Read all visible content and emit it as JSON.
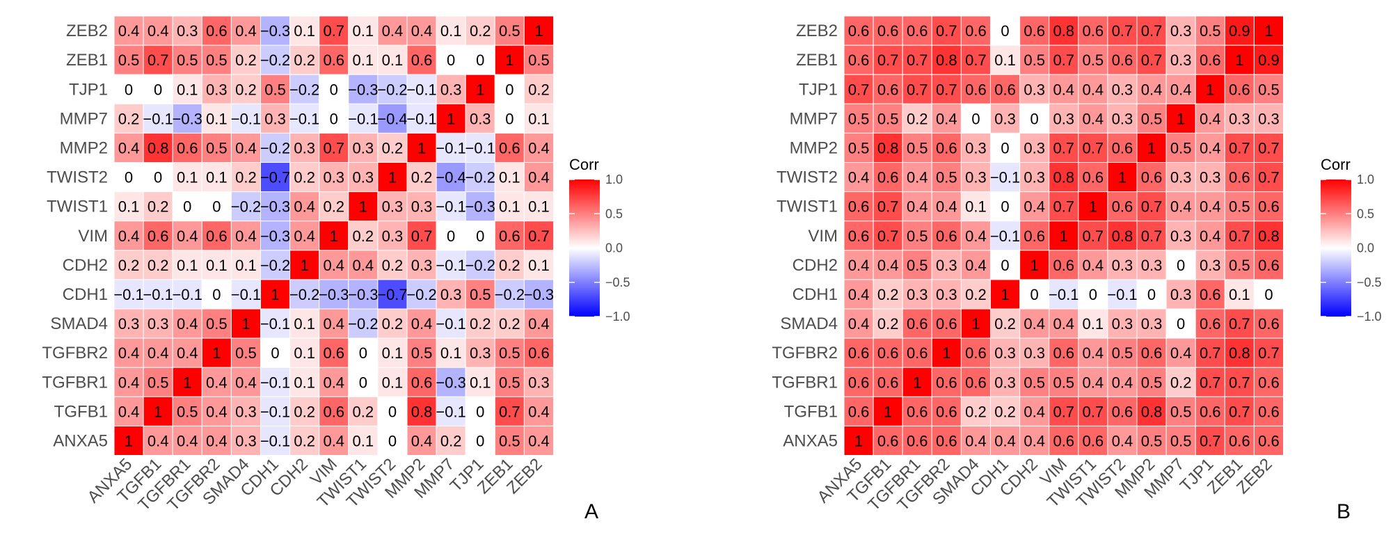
{
  "chart_data": [
    {
      "type": "heatmap",
      "panel_label": "A",
      "x_categories": [
        "ANXA5",
        "TGFB1",
        "TGFBR1",
        "TGFBR2",
        "SMAD4",
        "CDH1",
        "CDH2",
        "VIM",
        "TWIST1",
        "TWIST2",
        "MMP2",
        "MMP7",
        "TJP1",
        "ZEB1",
        "ZEB2"
      ],
      "y_categories": [
        "ZEB2",
        "ZEB1",
        "TJP1",
        "MMP7",
        "MMP2",
        "TWIST2",
        "TWIST1",
        "VIM",
        "CDH2",
        "CDH1",
        "SMAD4",
        "TGFBR2",
        "TGFBR1",
        "TGFB1",
        "ANXA5"
      ],
      "values": [
        [
          0.4,
          0.4,
          0.3,
          0.6,
          0.4,
          -0.3,
          0.1,
          0.7,
          0.1,
          0.4,
          0.4,
          0.1,
          0.2,
          0.5,
          1
        ],
        [
          0.5,
          0.7,
          0.5,
          0.5,
          0.2,
          -0.2,
          0.2,
          0.6,
          0.1,
          0.1,
          0.6,
          0,
          0,
          1,
          0.5
        ],
        [
          0,
          0,
          0.1,
          0.3,
          0.2,
          0.5,
          -0.2,
          0,
          -0.3,
          -0.2,
          -0.1,
          0.3,
          1,
          0,
          0.2
        ],
        [
          0.2,
          -0.1,
          -0.3,
          0.1,
          -0.1,
          0.3,
          -0.1,
          0,
          -0.1,
          -0.4,
          -0.1,
          1,
          0.3,
          0,
          0.1
        ],
        [
          0.4,
          0.8,
          0.6,
          0.5,
          0.4,
          -0.2,
          0.3,
          0.7,
          0.3,
          0.2,
          1,
          -0.1,
          -0.1,
          0.6,
          0.4
        ],
        [
          0,
          0,
          0.1,
          0.1,
          0.2,
          -0.7,
          0.2,
          0.3,
          0.3,
          1,
          0.2,
          -0.4,
          -0.2,
          0.1,
          0.4
        ],
        [
          0.1,
          0.2,
          0,
          0,
          -0.2,
          -0.3,
          0.4,
          0.2,
          1,
          0.3,
          0.3,
          -0.1,
          -0.3,
          0.1,
          0.1
        ],
        [
          0.4,
          0.6,
          0.4,
          0.6,
          0.4,
          -0.3,
          0.4,
          1,
          0.2,
          0.3,
          0.7,
          0,
          0,
          0.6,
          0.7
        ],
        [
          0.2,
          0.2,
          0.1,
          0.1,
          0.1,
          -0.2,
          1,
          0.4,
          0.4,
          0.2,
          0.3,
          -0.1,
          -0.2,
          0.2,
          0.1
        ],
        [
          -0.1,
          -0.1,
          -0.1,
          0,
          -0.1,
          1,
          -0.2,
          -0.3,
          -0.3,
          -0.7,
          -0.2,
          0.3,
          0.5,
          -0.2,
          -0.3
        ],
        [
          0.3,
          0.3,
          0.4,
          0.5,
          1,
          -0.1,
          0.1,
          0.4,
          -0.2,
          0.2,
          0.4,
          -0.1,
          0.2,
          0.2,
          0.4
        ],
        [
          0.4,
          0.4,
          0.4,
          1,
          0.5,
          0,
          0.1,
          0.6,
          0,
          0.1,
          0.5,
          0.1,
          0.3,
          0.5,
          0.6
        ],
        [
          0.4,
          0.5,
          1,
          0.4,
          0.4,
          -0.1,
          0.1,
          0.4,
          0,
          0.1,
          0.6,
          -0.3,
          0.1,
          0.5,
          0.3
        ],
        [
          0.4,
          1,
          0.5,
          0.4,
          0.3,
          -0.1,
          0.2,
          0.6,
          0.2,
          0,
          0.8,
          -0.1,
          0,
          0.7,
          0.4
        ],
        [
          1,
          0.4,
          0.4,
          0.4,
          0.3,
          -0.1,
          0.2,
          0.4,
          0.1,
          0,
          0.4,
          0.2,
          0,
          0.5,
          0.4
        ]
      ],
      "legend": {
        "title": "Corr",
        "ticks": [
          1.0,
          0.5,
          0.0,
          -0.5,
          -1.0
        ],
        "tick_labels": [
          "1.0",
          "0.5",
          "0.0",
          "−0.5",
          "−1.0"
        ],
        "range": [
          -1,
          1
        ],
        "placement": "right"
      },
      "colors": {
        "low": "#0000ff",
        "mid": "#ffffff",
        "high": "#ff0000",
        "grid": "#ffffff"
      }
    },
    {
      "type": "heatmap",
      "panel_label": "B",
      "x_categories": [
        "ANXA5",
        "TGFB1",
        "TGFBR1",
        "TGFBR2",
        "SMAD4",
        "CDH1",
        "CDH2",
        "VIM",
        "TWIST1",
        "TWIST2",
        "MMP2",
        "MMP7",
        "TJP1",
        "ZEB1",
        "ZEB2"
      ],
      "y_categories": [
        "ZEB2",
        "ZEB1",
        "TJP1",
        "MMP7",
        "MMP2",
        "TWIST2",
        "TWIST1",
        "VIM",
        "CDH2",
        "CDH1",
        "SMAD4",
        "TGFBR2",
        "TGFBR1",
        "TGFB1",
        "ANXA5"
      ],
      "values": [
        [
          0.6,
          0.6,
          0.6,
          0.7,
          0.6,
          0,
          0.6,
          0.8,
          0.6,
          0.7,
          0.7,
          0.3,
          0.5,
          0.9,
          1
        ],
        [
          0.6,
          0.7,
          0.7,
          0.8,
          0.7,
          0.1,
          0.5,
          0.7,
          0.5,
          0.6,
          0.7,
          0.3,
          0.6,
          1,
          0.9
        ],
        [
          0.7,
          0.6,
          0.7,
          0.7,
          0.6,
          0.6,
          0.3,
          0.4,
          0.4,
          0.3,
          0.4,
          0.4,
          1,
          0.6,
          0.5
        ],
        [
          0.5,
          0.5,
          0.2,
          0.4,
          0,
          0.3,
          0,
          0.3,
          0.4,
          0.3,
          0.5,
          1,
          0.4,
          0.3,
          0.3
        ],
        [
          0.5,
          0.8,
          0.5,
          0.6,
          0.3,
          0,
          0.3,
          0.7,
          0.7,
          0.6,
          1,
          0.5,
          0.4,
          0.7,
          0.7
        ],
        [
          0.4,
          0.6,
          0.4,
          0.5,
          0.3,
          -0.1,
          0.3,
          0.8,
          0.6,
          1,
          0.6,
          0.3,
          0.3,
          0.6,
          0.7
        ],
        [
          0.6,
          0.7,
          0.4,
          0.4,
          0.1,
          0,
          0.4,
          0.7,
          1,
          0.6,
          0.7,
          0.4,
          0.4,
          0.5,
          0.6
        ],
        [
          0.6,
          0.7,
          0.5,
          0.6,
          0.4,
          -0.1,
          0.6,
          1,
          0.7,
          0.8,
          0.7,
          0.3,
          0.4,
          0.7,
          0.8
        ],
        [
          0.4,
          0.4,
          0.5,
          0.3,
          0.4,
          0,
          1,
          0.6,
          0.4,
          0.3,
          0.3,
          0,
          0.3,
          0.5,
          0.6
        ],
        [
          0.4,
          0.2,
          0.3,
          0.3,
          0.2,
          1,
          0,
          -0.1,
          0,
          -0.1,
          0,
          0.3,
          0.6,
          0.1,
          0
        ],
        [
          0.4,
          0.2,
          0.6,
          0.6,
          1,
          0.2,
          0.4,
          0.4,
          0.1,
          0.3,
          0.3,
          0,
          0.6,
          0.7,
          0.6
        ],
        [
          0.6,
          0.6,
          0.6,
          1,
          0.6,
          0.3,
          0.3,
          0.6,
          0.4,
          0.5,
          0.6,
          0.4,
          0.7,
          0.8,
          0.7
        ],
        [
          0.6,
          0.6,
          1,
          0.6,
          0.6,
          0.3,
          0.5,
          0.5,
          0.4,
          0.4,
          0.5,
          0.2,
          0.7,
          0.7,
          0.6
        ],
        [
          0.6,
          1,
          0.6,
          0.6,
          0.2,
          0.2,
          0.4,
          0.7,
          0.7,
          0.6,
          0.8,
          0.5,
          0.6,
          0.7,
          0.6
        ],
        [
          1,
          0.6,
          0.6,
          0.6,
          0.4,
          0.4,
          0.4,
          0.6,
          0.6,
          0.4,
          0.5,
          0.5,
          0.7,
          0.6,
          0.6
        ]
      ],
      "legend": {
        "title": "Corr",
        "ticks": [
          1.0,
          0.5,
          0.0,
          -0.5,
          -1.0
        ],
        "tick_labels": [
          "1.0",
          "0.5",
          "0.0",
          "−0.5",
          "−1.0"
        ],
        "range": [
          -1,
          1
        ],
        "placement": "right"
      },
      "colors": {
        "low": "#0000ff",
        "mid": "#ffffff",
        "high": "#ff0000",
        "grid": "#ffffff"
      }
    }
  ]
}
